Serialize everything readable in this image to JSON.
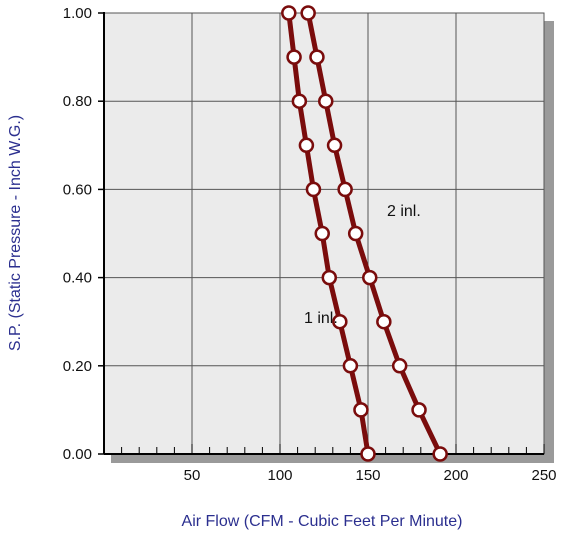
{
  "colors": {
    "plot_bg": "#ebebeb",
    "grid": "#555555",
    "shadow": "#9a9a9a",
    "series": "#7a0c0c",
    "marker_fill": "#ffffff",
    "axis_title": "#2b2f8f"
  },
  "chart_data": {
    "type": "line",
    "xlabel": "Air Flow (CFM - Cubic Feet Per Minute)",
    "ylabel": "S.P. (Static Pressure - Inch W.G.)",
    "xlim": [
      0,
      250
    ],
    "ylim": [
      0,
      1.0
    ],
    "x_ticks": [
      50,
      100,
      150,
      200,
      250
    ],
    "x_tick_labels": [
      "50",
      "100",
      "150",
      "200",
      "250"
    ],
    "y_ticks": [
      0,
      0.2,
      0.4,
      0.6,
      0.8,
      1.0
    ],
    "y_tick_labels": [
      "0.00",
      "0.20",
      "0.40",
      "0.60",
      "0.80",
      "1.00"
    ],
    "grid": true,
    "series": [
      {
        "name": "1 inl.",
        "points": [
          [
            105,
            1.0
          ],
          [
            108,
            0.9
          ],
          [
            111,
            0.8
          ],
          [
            115,
            0.7
          ],
          [
            119,
            0.6
          ],
          [
            124,
            0.5
          ],
          [
            128,
            0.4
          ],
          [
            134,
            0.3
          ],
          [
            140,
            0.2
          ],
          [
            146,
            0.1
          ],
          [
            150,
            0.0
          ]
        ]
      },
      {
        "name": "2 inl.",
        "points": [
          [
            116,
            1.0
          ],
          [
            121,
            0.9
          ],
          [
            126,
            0.8
          ],
          [
            131,
            0.7
          ],
          [
            137,
            0.6
          ],
          [
            143,
            0.5
          ],
          [
            151,
            0.4
          ],
          [
            159,
            0.3
          ],
          [
            168,
            0.2
          ],
          [
            179,
            0.1
          ],
          [
            191,
            0.0
          ]
        ]
      }
    ]
  }
}
